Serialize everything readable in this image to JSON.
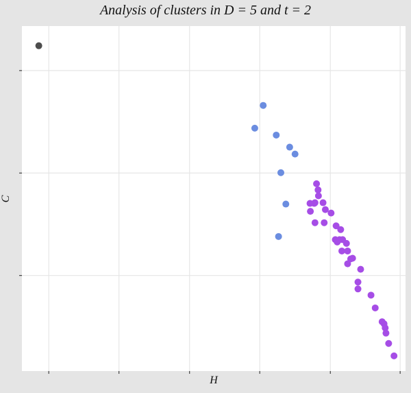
{
  "chart_data": {
    "type": "scatter",
    "title": "Analysis of clusters in D = 5 and t = 2",
    "xlabel": "H",
    "ylabel": "C",
    "xlim": [
      0.0,
      1.0
    ],
    "ylim": [
      0.0,
      1.0
    ],
    "grid": true,
    "x_ticks": [
      0.07,
      0.253,
      0.437,
      0.62,
      0.804,
      0.986
    ],
    "y_ticks": [
      0.277,
      0.574,
      0.871
    ],
    "legend": "none",
    "series": [
      {
        "color": "#4d4d4d",
        "points": [
          [
            0.044,
            0.943
          ]
        ]
      },
      {
        "color": "#6b8de0",
        "points": [
          [
            0.629,
            0.77
          ],
          [
            0.607,
            0.704
          ],
          [
            0.663,
            0.684
          ],
          [
            0.698,
            0.649
          ],
          [
            0.712,
            0.629
          ],
          [
            0.675,
            0.575
          ],
          [
            0.688,
            0.484
          ],
          [
            0.669,
            0.39
          ]
        ]
      },
      {
        "color": "#a64de6",
        "points": [
          [
            0.768,
            0.543
          ],
          [
            0.772,
            0.525
          ],
          [
            0.773,
            0.508
          ],
          [
            0.764,
            0.488
          ],
          [
            0.785,
            0.488
          ],
          [
            0.762,
            0.486
          ],
          [
            0.751,
            0.486
          ],
          [
            0.752,
            0.463
          ],
          [
            0.791,
            0.468
          ],
          [
            0.806,
            0.458
          ],
          [
            0.764,
            0.43
          ],
          [
            0.788,
            0.43
          ],
          [
            0.819,
            0.421
          ],
          [
            0.831,
            0.41
          ],
          [
            0.817,
            0.381
          ],
          [
            0.828,
            0.381
          ],
          [
            0.822,
            0.374
          ],
          [
            0.836,
            0.381
          ],
          [
            0.846,
            0.37
          ],
          [
            0.834,
            0.348
          ],
          [
            0.849,
            0.348
          ],
          [
            0.862,
            0.327
          ],
          [
            0.857,
            0.325
          ],
          [
            0.849,
            0.311
          ],
          [
            0.883,
            0.295
          ],
          [
            0.876,
            0.258
          ],
          [
            0.876,
            0.238
          ],
          [
            0.91,
            0.22
          ],
          [
            0.921,
            0.183
          ],
          [
            0.939,
            0.143
          ],
          [
            0.944,
            0.137
          ],
          [
            0.947,
            0.125
          ],
          [
            0.949,
            0.11
          ],
          [
            0.956,
            0.08
          ],
          [
            0.97,
            0.044
          ]
        ]
      }
    ]
  }
}
